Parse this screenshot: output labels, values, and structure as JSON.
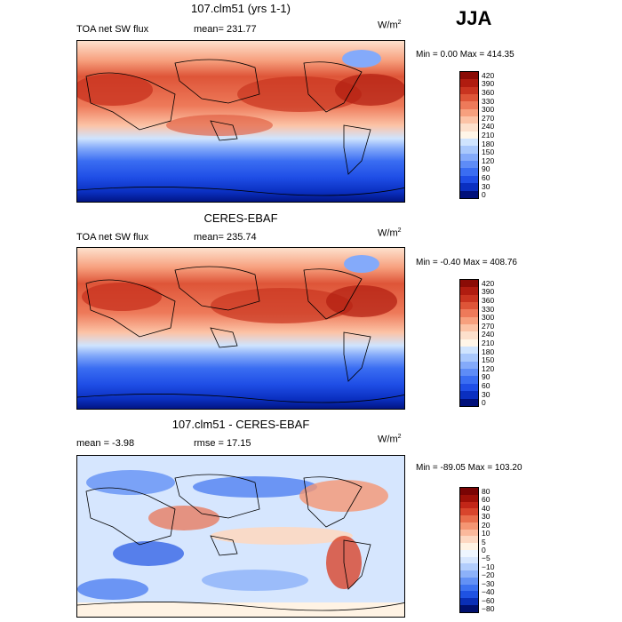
{
  "season": "JJA",
  "colors": {
    "abs": [
      "#00107a",
      "#0a2fc0",
      "#1f4ee6",
      "#3a6df2",
      "#5e8cf7",
      "#84aafa",
      "#a9c8fc",
      "#cfe4fe",
      "#fff6e8",
      "#fde0cc",
      "#fcc3a6",
      "#f7a07e",
      "#ee7a5a",
      "#de5538",
      "#c93420",
      "#b01c10",
      "#8b0c06"
    ],
    "diff": [
      "#00106e",
      "#0a2fb6",
      "#1f52e2",
      "#3d72f0",
      "#6391f5",
      "#8cb1f9",
      "#b2cdfc",
      "#d6e6fe",
      "#eef6ff",
      "#fff3e4",
      "#fdd8c2",
      "#fbb99c",
      "#f59673",
      "#e96e4c",
      "#d8452c",
      "#c22618",
      "#9e1008",
      "#7a0404"
    ]
  },
  "panels": [
    {
      "title": "107.clm51 (yrs 1-1)",
      "left_text": "TOA net SW flux",
      "mid_text": "mean= 231.77",
      "units": "W/m",
      "units_exp": "2",
      "minmax": "Min =    0.00 Max = 414.35",
      "legend_labels": [
        "420",
        "390",
        "360",
        "330",
        "300",
        "270",
        "240",
        "210",
        "180",
        "150",
        "120",
        "90",
        "60",
        "30",
        "0"
      ]
    },
    {
      "title": "CERES-EBAF",
      "left_text": "TOA net SW flux",
      "mid_text": "mean= 235.74",
      "units": "W/m",
      "units_exp": "2",
      "minmax": "Min =  -0.40 Max = 408.76",
      "legend_labels": [
        "420",
        "390",
        "360",
        "330",
        "300",
        "270",
        "240",
        "210",
        "180",
        "150",
        "120",
        "90",
        "60",
        "30",
        "0"
      ]
    },
    {
      "title": "107.clm51 - CERES-EBAF",
      "left_text": "mean =   -3.98",
      "mid_text": "rmse =   17.15",
      "units": "W/m",
      "units_exp": "2",
      "minmax": "Min = -89.05 Max = 103.20",
      "legend_labels": [
        "80",
        "60",
        "40",
        "30",
        "20",
        "10",
        "5",
        "0",
        "−5",
        "−10",
        "−20",
        "−30",
        "−40",
        "−60",
        "−80"
      ]
    }
  ],
  "chart_data": [
    {
      "type": "heatmap",
      "title": "107.clm51 (yrs 1-1)",
      "subtitle": "TOA net SW flux",
      "mean": 231.77,
      "min": 0.0,
      "max": 414.35,
      "units": "W/m2",
      "colorbar_levels": [
        0,
        30,
        60,
        90,
        120,
        150,
        180,
        210,
        240,
        270,
        300,
        330,
        360,
        390,
        420
      ]
    },
    {
      "type": "heatmap",
      "title": "CERES-EBAF",
      "subtitle": "TOA net SW flux",
      "mean": 235.74,
      "min": -0.4,
      "max": 408.76,
      "units": "W/m2",
      "colorbar_levels": [
        0,
        30,
        60,
        90,
        120,
        150,
        180,
        210,
        240,
        270,
        300,
        330,
        360,
        390,
        420
      ]
    },
    {
      "type": "heatmap",
      "title": "107.clm51 - CERES-EBAF",
      "mean": -3.98,
      "rmse": 17.15,
      "min": -89.05,
      "max": 103.2,
      "units": "W/m2",
      "colorbar_levels": [
        -80,
        -60,
        -40,
        -30,
        -20,
        -10,
        -5,
        0,
        5,
        10,
        20,
        30,
        40,
        60,
        80
      ]
    }
  ]
}
